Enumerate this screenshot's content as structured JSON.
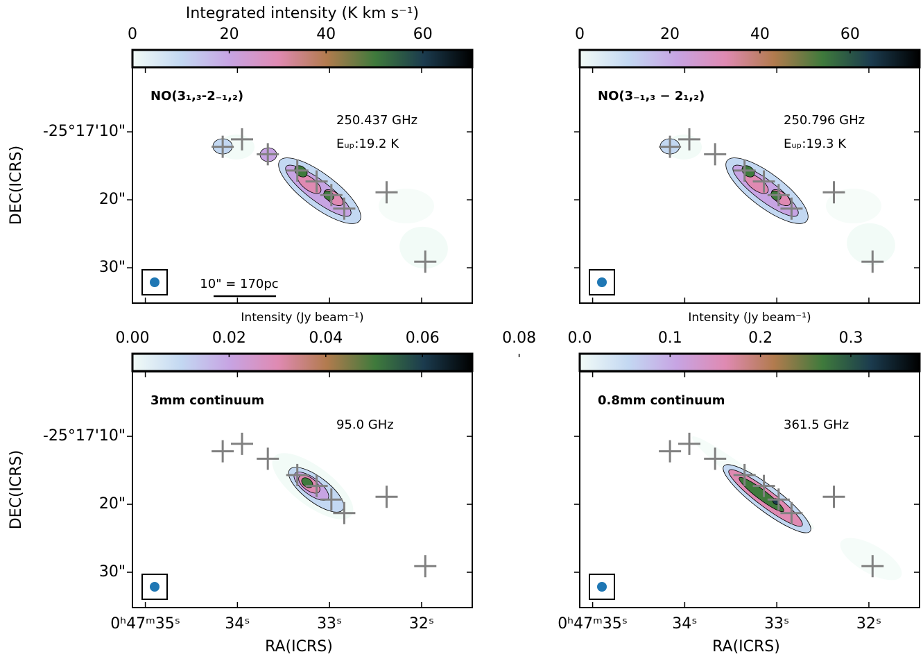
{
  "chart_data": [
    {
      "type": "map",
      "colorbar_label": "Integrated intensity (K km s⁻¹)",
      "clim": [
        0,
        70.2
      ],
      "cticks": [
        0,
        20,
        40,
        60
      ],
      "line_label": "NO(3₁,₃-2₋₁,₂)",
      "frequency": "250.437 GHz",
      "energy": "Eᵤₚ:19.2 K",
      "scale_bar": "10\" = 170pc",
      "ylabel": "DEC(ICRS)",
      "xlim": [
        35.14,
        31.45
      ],
      "ylim": [
        0.5,
        35.2
      ],
      "y_inverted": true,
      "xticks": [
        35,
        34,
        33,
        32
      ],
      "yticks": [
        {
          "value": 10,
          "label": "-25°17'10\""
        },
        {
          "value": 20,
          "label": "20\""
        },
        {
          "value": 30,
          "label": "30\""
        }
      ],
      "markers": {
        "color": "#808080",
        "x": [
          34.16,
          33.95,
          33.67,
          33.35,
          33.14,
          32.98,
          32.84,
          32.38,
          31.96
        ],
        "y": [
          12.2,
          11.1,
          13.3,
          15.7,
          17.3,
          19.3,
          21.3,
          18.9,
          29.1
        ]
      },
      "colormap": [
        "#f2fbf7",
        "#c3d8f2",
        "#c7a4e3",
        "#df8ab2",
        "#b27b4e",
        "#3f7a3c",
        "#1b3b4e",
        "#000000"
      ]
    },
    {
      "type": "map",
      "clim": [
        0,
        75.4
      ],
      "cticks": [
        0,
        20,
        40,
        60
      ],
      "line_label": "NO(3₋₁,₃ − 2₁,₂)",
      "frequency": "250.796 GHz",
      "energy": "Eᵤₚ:19.3 K",
      "xlim": [
        35.14,
        31.45
      ],
      "ylim": [
        0.5,
        35.2
      ],
      "y_inverted": true,
      "xticks": [
        35,
        34,
        33,
        32
      ],
      "yticks": [
        10,
        20,
        30
      ],
      "markers": {
        "color": "#808080",
        "x": [
          34.16,
          33.95,
          33.67,
          33.35,
          33.14,
          32.98,
          32.84,
          32.38,
          31.96
        ],
        "y": [
          12.2,
          11.1,
          13.3,
          15.7,
          17.3,
          19.3,
          21.3,
          18.9,
          29.1
        ]
      },
      "colormap": [
        "#f2fbf7",
        "#c3d8f2",
        "#c7a4e3",
        "#df8ab2",
        "#b27b4e",
        "#3f7a3c",
        "#1b3b4e",
        "#000000"
      ]
    },
    {
      "type": "map",
      "colorbar_label": "Intensity (Jy beam⁻¹)",
      "clim": [
        0,
        0.0703
      ],
      "cticks": [
        {
          "value": 0,
          "label": "0.00"
        },
        0.02,
        0.04,
        0.06,
        0.08
      ],
      "line_label": "3mm continuum",
      "frequency": "95.0 GHz",
      "ylabel": "DEC(ICRS)",
      "xlabel": "RA(ICRS)",
      "xlim": [
        35.14,
        31.45
      ],
      "ylim": [
        0.5,
        35.2
      ],
      "y_inverted": true,
      "xticks": [
        {
          "value": 35,
          "label": "0ʰ47ᵐ35ˢ"
        },
        {
          "value": 34,
          "label": "34ˢ"
        },
        {
          "value": 33,
          "label": "33ˢ"
        },
        {
          "value": 32,
          "label": "32ˢ"
        }
      ],
      "yticks": [
        {
          "value": 10,
          "label": "-25°17'10\""
        },
        {
          "value": 20,
          "label": "20\""
        },
        {
          "value": 30,
          "label": "30\""
        }
      ],
      "markers": {
        "color": "#808080",
        "x": [
          34.16,
          33.95,
          33.67,
          33.35,
          33.14,
          32.98,
          32.84,
          32.38,
          31.96
        ],
        "y": [
          12.2,
          11.1,
          13.3,
          15.7,
          17.3,
          19.3,
          21.3,
          18.9,
          29.1
        ]
      },
      "colormap": [
        "#f2fbf7",
        "#c3d8f2",
        "#c7a4e3",
        "#df8ab2",
        "#b27b4e",
        "#3f7a3c",
        "#1b3b4e",
        "#000000"
      ]
    },
    {
      "type": "map",
      "colorbar_label": "Intensity (Jy beam⁻¹)",
      "clim": [
        0,
        0.376
      ],
      "cticks": [
        {
          "value": 0,
          "label": "0.0"
        },
        0.1,
        0.2,
        0.3
      ],
      "line_label": "0.8mm continuum",
      "frequency": "361.5 GHz",
      "xlabel": "RA(ICRS)",
      "xlim": [
        35.14,
        31.45
      ],
      "ylim": [
        0.5,
        35.2
      ],
      "y_inverted": true,
      "xticks": [
        {
          "value": 35,
          "label": "0ʰ47ᵐ35ˢ"
        },
        {
          "value": 34,
          "label": "34ˢ"
        },
        {
          "value": 33,
          "label": "33ˢ"
        },
        {
          "value": 32,
          "label": "32ˢ"
        }
      ],
      "yticks": [
        10,
        20,
        30
      ],
      "markers": {
        "color": "#808080",
        "x": [
          34.16,
          33.95,
          33.67,
          33.35,
          33.14,
          32.98,
          32.84,
          32.38,
          31.96
        ],
        "y": [
          12.2,
          11.1,
          13.3,
          15.7,
          17.3,
          19.3,
          21.3,
          18.9,
          29.1
        ]
      },
      "colormap": [
        "#f2fbf7",
        "#c3d8f2",
        "#c7a4e3",
        "#df8ab2",
        "#b27b4e",
        "#3f7a3c",
        "#1b3b4e",
        "#000000"
      ]
    }
  ]
}
